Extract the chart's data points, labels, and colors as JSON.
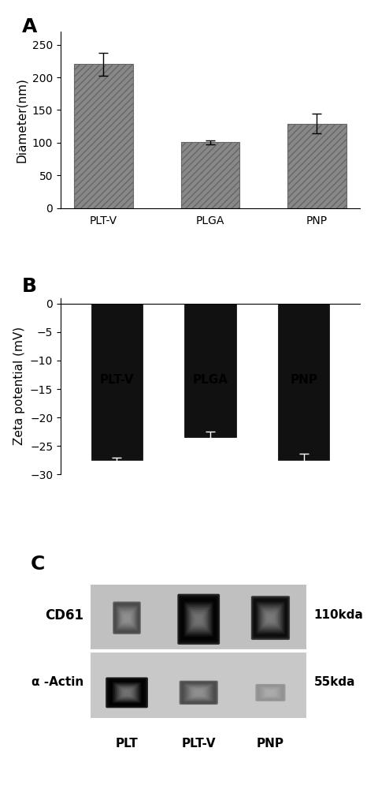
{
  "panel_A": {
    "categories": [
      "PLT-V",
      "PLGA",
      "PNP"
    ],
    "values": [
      220,
      101,
      129
    ],
    "errors": [
      18,
      3,
      15
    ],
    "ylabel": "Diameter(nm)",
    "ylim": [
      0,
      270
    ],
    "yticks": [
      0,
      50,
      100,
      150,
      200,
      250
    ],
    "bar_color": "#888888",
    "hatch": "////",
    "label": "A"
  },
  "panel_B": {
    "categories": [
      "PLT-V",
      "PLGA",
      "PNP"
    ],
    "values": [
      -27.5,
      -23.5,
      -27.5
    ],
    "errors": [
      0.5,
      1.0,
      1.2
    ],
    "ylabel": "Zeta potential (mV)",
    "ylim": [
      -30,
      1
    ],
    "yticks": [
      0,
      -5,
      -10,
      -15,
      -20,
      -25,
      -30
    ],
    "bar_color": "#111111",
    "label": "B"
  },
  "panel_C": {
    "label": "C",
    "cd61_label": "CD61",
    "actin_label": "α -Actin",
    "right_label_top": "110kda",
    "right_label_bottom": "55kda",
    "bottom_labels": [
      "PLT",
      "PLT-V",
      "PNP"
    ]
  },
  "background_color": "#ffffff",
  "label_fontsize": 18,
  "tick_fontsize": 10,
  "axis_label_fontsize": 11
}
